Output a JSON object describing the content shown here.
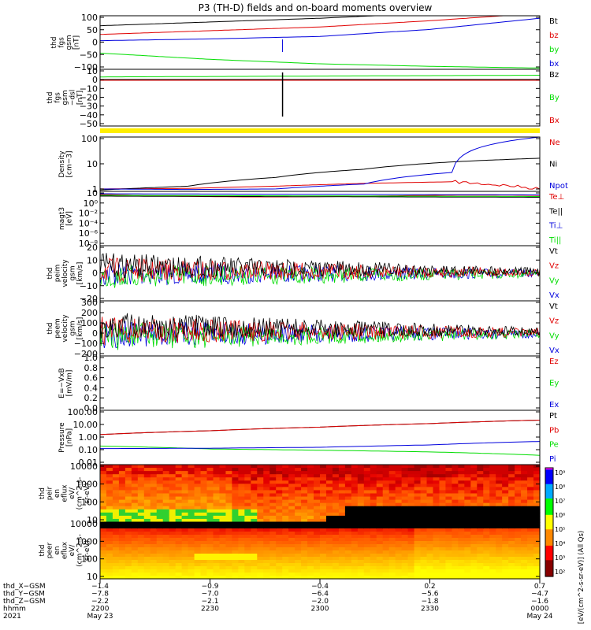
{
  "title": "P3 (TH-D) fields and on-board moments overview",
  "colors": {
    "black": "#000000",
    "red": "#e00000",
    "green": "#00dd00",
    "blue": "#0000dd",
    "yellow": "#ffee00"
  },
  "chart_data": [
    {
      "type": "line",
      "panel": "fgs_gsm",
      "ylabel": [
        "thd",
        "fgs",
        "gsm",
        "[nT]"
      ],
      "yticks": [
        "100",
        "50",
        "0",
        "−50",
        "−100"
      ],
      "ylim": [
        -110,
        105
      ],
      "x": [
        0,
        0.25,
        0.5,
        0.75,
        1
      ],
      "series": [
        {
          "name": "Bt",
          "color": "#000000",
          "values": [
            65,
            80,
            95,
            115,
            130
          ]
        },
        {
          "name": "bz",
          "color": "#e00000",
          "values": [
            30,
            45,
            60,
            85,
            115
          ]
        },
        {
          "name": "by",
          "color": "#00dd00",
          "values": [
            -45,
            -70,
            -88,
            -98,
            -105
          ]
        },
        {
          "name": "bx",
          "color": "#0000dd",
          "values": [
            5,
            12,
            22,
            50,
            95
          ]
        }
      ]
    },
    {
      "type": "line",
      "panel": "fgs_gsm_dsl",
      "ylabel": [
        "thd",
        "fgs",
        "gsm",
        "−dsl",
        "[nT]"
      ],
      "yticks": [
        "10",
        "0",
        "−10",
        "−20",
        "−30",
        "−40",
        "−50"
      ],
      "ylim": [
        -55,
        12
      ],
      "x": [
        0,
        1
      ],
      "series": [
        {
          "name": "Bz",
          "color": "#000000",
          "values": [
            0,
            0
          ]
        },
        {
          "name": "By",
          "color": "#00dd00",
          "values": [
            3,
            5
          ]
        },
        {
          "name": "Bx",
          "color": "#e00000",
          "values": [
            -1,
            -1
          ]
        }
      ]
    },
    {
      "type": "line",
      "panel": "density",
      "ylabel": [
        "Density",
        "[cm−3]"
      ],
      "yticks": [
        "100",
        "10",
        "1"
      ],
      "log": true,
      "ylim": [
        0.7,
        200
      ],
      "x": [
        0,
        0.2,
        0.4,
        0.6,
        0.8,
        1
      ],
      "series": [
        {
          "name": "Ne",
          "color": "#e00000",
          "values": [
            0.9,
            0.95,
            1.2,
            1.6,
            1.9,
            0.9
          ]
        },
        {
          "name": "Ni",
          "color": "#000000",
          "values": [
            0.8,
            1.2,
            3,
            7,
            15,
            22
          ]
        },
        {
          "name": "Npot",
          "color": "#0000dd",
          "values": [
            0.9,
            0.85,
            0.9,
            1.5,
            5,
            200
          ]
        }
      ]
    },
    {
      "type": "line",
      "panel": "temperature",
      "ylabel": [
        "magt3",
        "[eV]"
      ],
      "yticks": [
        "10",
        "10⁰",
        "10⁻²",
        "10⁻⁴",
        "10⁻⁶",
        "10⁻⁸"
      ],
      "log": true,
      "series": [
        {
          "name": "Te⊥",
          "color": "#e00000"
        },
        {
          "name": "Te||",
          "color": "#000000"
        },
        {
          "name": "Ti⊥",
          "color": "#0000dd"
        },
        {
          "name": "Ti||",
          "color": "#00dd00"
        }
      ]
    },
    {
      "type": "line",
      "panel": "peim_velocity",
      "ylabel": [
        "thd",
        "peim",
        "velocity",
        "gsm",
        "[km/s]"
      ],
      "yticks": [
        "20",
        "10",
        "0",
        "−10",
        "−20"
      ],
      "ylim": [
        -22,
        22
      ],
      "series": [
        {
          "name": "Vt",
          "color": "#000000"
        },
        {
          "name": "Vz",
          "color": "#e00000"
        },
        {
          "name": "Vy",
          "color": "#00dd00"
        },
        {
          "name": "Vx",
          "color": "#0000dd"
        }
      ]
    },
    {
      "type": "line",
      "panel": "peem_velocity",
      "ylabel": [
        "thd",
        "peem",
        "velocity",
        "gsm",
        "[km/s]"
      ],
      "yticks": [
        "300",
        "200",
        "100",
        "0",
        "−100",
        "−200"
      ],
      "ylim": [
        -220,
        320
      ],
      "series": [
        {
          "name": "Vt",
          "color": "#000000"
        },
        {
          "name": "Vz",
          "color": "#e00000"
        },
        {
          "name": "Vy",
          "color": "#00dd00"
        },
        {
          "name": "Vx",
          "color": "#0000dd"
        }
      ]
    },
    {
      "type": "line",
      "panel": "efield",
      "ylabel": [
        "E=−VxB",
        "[mV/m]"
      ],
      "yticks": [
        "1.0",
        "0.8",
        "0.6",
        "0.4",
        "0.2",
        "0.0"
      ],
      "ylim": [
        0,
        1
      ],
      "series": [
        {
          "name": "Ez",
          "color": "#e00000"
        },
        {
          "name": "Ey",
          "color": "#00dd00"
        },
        {
          "name": "Ex",
          "color": "#0000dd"
        }
      ]
    },
    {
      "type": "line",
      "panel": "pressure",
      "ylabel": [
        "Pressure",
        "[nPa]"
      ],
      "yticks": [
        "100.00",
        "10.00",
        "1.00",
        "0.10",
        "0.01"
      ],
      "log": true,
      "ylim": [
        0.01,
        120
      ],
      "x": [
        0,
        0.25,
        0.5,
        0.75,
        1
      ],
      "series": [
        {
          "name": "Pt",
          "color": "#000000",
          "values": [
            1.8,
            3.5,
            6.5,
            12,
            22
          ]
        },
        {
          "name": "Pb",
          "color": "#e00000",
          "values": [
            1.8,
            3.5,
            6.5,
            12,
            22
          ]
        },
        {
          "name": "Pe",
          "color": "#00dd00",
          "values": [
            0.25,
            0.15,
            0.12,
            0.09,
            0.05
          ]
        },
        {
          "name": "Pi",
          "color": "#0000dd",
          "values": [
            0.16,
            0.17,
            0.2,
            0.3,
            0.55
          ]
        }
      ]
    },
    {
      "type": "heatmap",
      "panel": "peir_flux",
      "ylabel": [
        "thd",
        "peir",
        "en",
        "eflux",
        "eV/",
        "(cm^2-s-",
        "sr-eV)"
      ],
      "yticks": [
        "10000",
        "1000",
        "100",
        "10"
      ]
    },
    {
      "type": "heatmap",
      "panel": "peer_flux",
      "ylabel": [
        "thd",
        "peer",
        "en",
        "eflux",
        "eV/",
        "(cm^2-s-",
        "sr-eV)"
      ],
      "yticks": [
        "10000",
        "1000",
        "100",
        "10"
      ]
    }
  ],
  "colorbar": {
    "ticks": [
      "10⁹",
      "10⁸",
      "10⁷",
      "10⁶",
      "10⁵",
      "10⁴",
      "10³",
      "10²"
    ],
    "label": "[eV/(cm^2-s-sr-eV)] (All Qs)",
    "label2": "[eV/(cm^2-s-sr-eV)]"
  },
  "xaxis": {
    "rows": [
      {
        "label": "thd_X−GSM",
        "values": [
          "−1.4",
          "−0.9",
          "−0.4",
          "0.2",
          "0.7"
        ]
      },
      {
        "label": "thd_Y−GSM",
        "values": [
          "−7.8",
          "−7.0",
          "−6.4",
          "−5.6",
          "−4.7"
        ]
      },
      {
        "label": "thd_Z−GSM",
        "values": [
          "−2.2",
          "−2.1",
          "−2.0",
          "−1.8",
          "−1.6"
        ]
      },
      {
        "label": "hhmm",
        "values": [
          "2200",
          "2230",
          "2300",
          "2330",
          "0000"
        ]
      }
    ],
    "year": "2021",
    "date_start": "May 23",
    "date_end": "May 24"
  }
}
